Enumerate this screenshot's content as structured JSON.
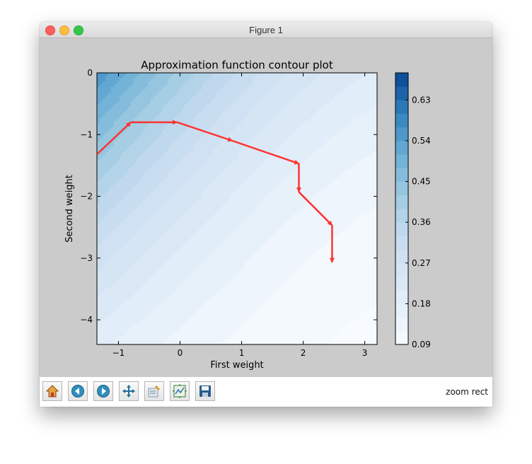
{
  "window": {
    "title": "Figure 1"
  },
  "toolbar": {
    "buttons": [
      {
        "name": "home-button",
        "icon": "home-icon"
      },
      {
        "name": "back-button",
        "icon": "back-arrow-icon"
      },
      {
        "name": "forward-button",
        "icon": "forward-arrow-icon"
      },
      {
        "name": "pan-button",
        "icon": "move-icon"
      },
      {
        "name": "zoom-button",
        "icon": "zoom-rect-icon"
      },
      {
        "name": "subplots-button",
        "icon": "subplots-icon"
      },
      {
        "name": "save-button",
        "icon": "save-icon"
      }
    ],
    "status": "zoom rect"
  },
  "chart_data": {
    "type": "contour",
    "title": "Approximation function contour plot",
    "xlabel": "First weight",
    "ylabel": "Second weight",
    "xlim": [
      -1.35,
      3.2
    ],
    "ylim": [
      -4.4,
      0
    ],
    "xticks": [
      -1,
      0,
      1,
      2,
      3
    ],
    "yticks": [
      0,
      -1,
      -2,
      -3,
      -4
    ],
    "colorbar": {
      "range": [
        0.09,
        0.69
      ],
      "ticks": [
        0.09,
        0.18,
        0.27,
        0.36,
        0.45,
        0.54,
        0.63
      ],
      "colormap": "Blues",
      "levels": 20
    },
    "path": {
      "color": "#ff3333",
      "points": [
        [
          -1.35,
          -1.32
        ],
        [
          -0.8,
          -0.8
        ],
        [
          -0.05,
          -0.8
        ],
        [
          0.85,
          -1.1
        ],
        [
          1.93,
          -1.47
        ],
        [
          1.93,
          -1.93
        ],
        [
          2.47,
          -2.47
        ],
        [
          2.47,
          -3.07
        ]
      ]
    }
  }
}
